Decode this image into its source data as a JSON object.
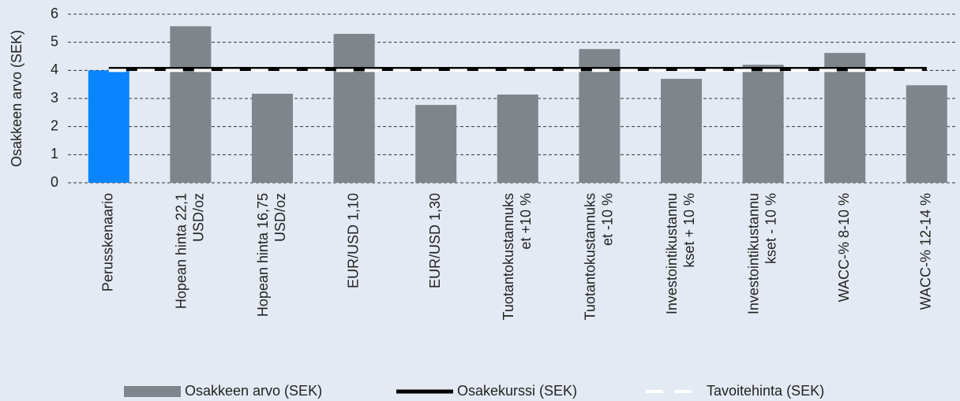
{
  "chart_data": {
    "type": "bar",
    "y_label": "Osakkeen arvo (SEK)",
    "categories": [
      "Perusskenaario",
      "Hopean hinta 22,1\nUSD/oz",
      "Hopean hinta 16,75\nUSD/oz",
      "EUR/USD 1,10",
      "EUR/USD 1,30",
      "Tuotantokustannuks\net +10 %",
      "Tuotantokustannuks\net -10 %",
      "Investointikustannu\nkset + 10 %",
      "Investointikustannu\nkset - 10 %",
      "WACC-%  8-10 %",
      "WACC-% 12-14 %"
    ],
    "series": [
      {
        "name": "Osakkeen arvo (SEK)",
        "type": "bar",
        "color": "#7e868b",
        "colors": [
          "#0a84ff",
          "#7e868b",
          "#7e868b",
          "#7e868b",
          "#7e868b",
          "#7e868b",
          "#7e868b",
          "#7e868b",
          "#7e868b",
          "#7e868b",
          "#7e868b"
        ],
        "values": [
          4.0,
          5.57,
          3.17,
          5.3,
          2.77,
          3.14,
          4.76,
          3.7,
          4.2,
          4.62,
          3.47
        ]
      },
      {
        "name": "Osakekurssi (SEK)",
        "type": "line",
        "color": "#000000",
        "values": [
          4.05,
          4.05,
          4.05,
          4.05,
          4.05,
          4.05,
          4.05,
          4.05,
          4.05,
          4.05,
          4.05
        ]
      },
      {
        "name": "Tavoitehinta (SEK)",
        "type": "line",
        "dashed": true,
        "color": "#ffffff",
        "values": [
          4.0,
          4.0,
          4.0,
          4.0,
          4.0,
          4.0,
          4.0,
          4.0,
          4.0,
          4.0,
          4.0
        ]
      }
    ],
    "ylim": [
      0,
      6
    ],
    "yticks": [
      0,
      1,
      2,
      3,
      4,
      5,
      6
    ],
    "grid": true,
    "legend": "bottom"
  }
}
